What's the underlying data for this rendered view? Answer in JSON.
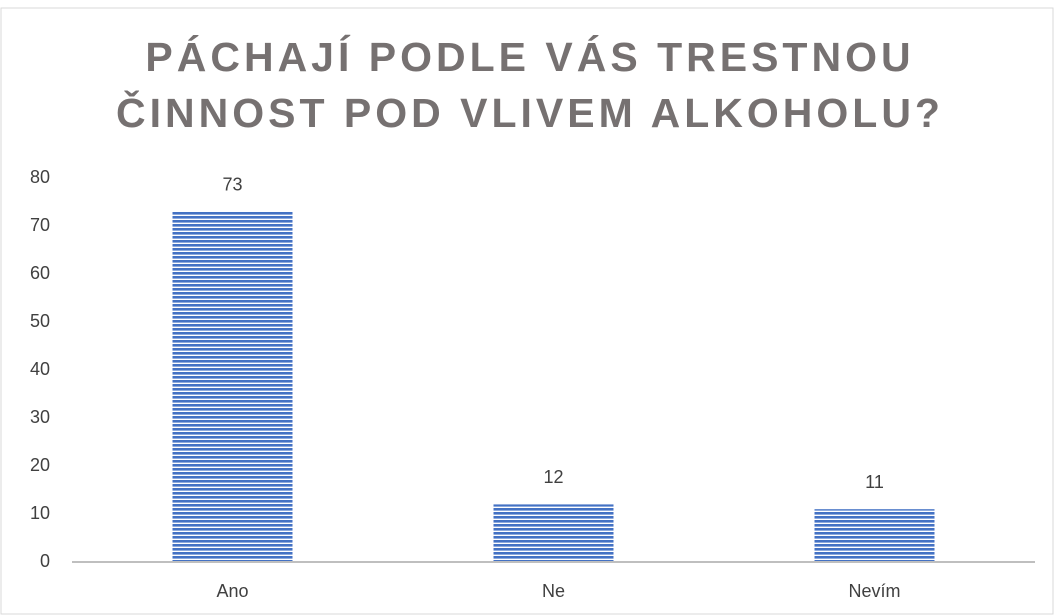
{
  "chart_data": {
    "type": "bar",
    "title": [
      "PÁCHAJÍ PODLE VÁS TRESTNOU",
      "ČINNOST POD VLIVEM ALKOHOLU?"
    ],
    "categories": [
      "Ano",
      "Ne",
      "Nevím"
    ],
    "values": [
      73,
      12,
      11
    ],
    "color": "#4472c4",
    "ylim": [
      0,
      80
    ],
    "yticks": [
      0,
      10,
      20,
      30,
      40,
      50,
      60,
      70,
      80
    ],
    "grid": false
  }
}
